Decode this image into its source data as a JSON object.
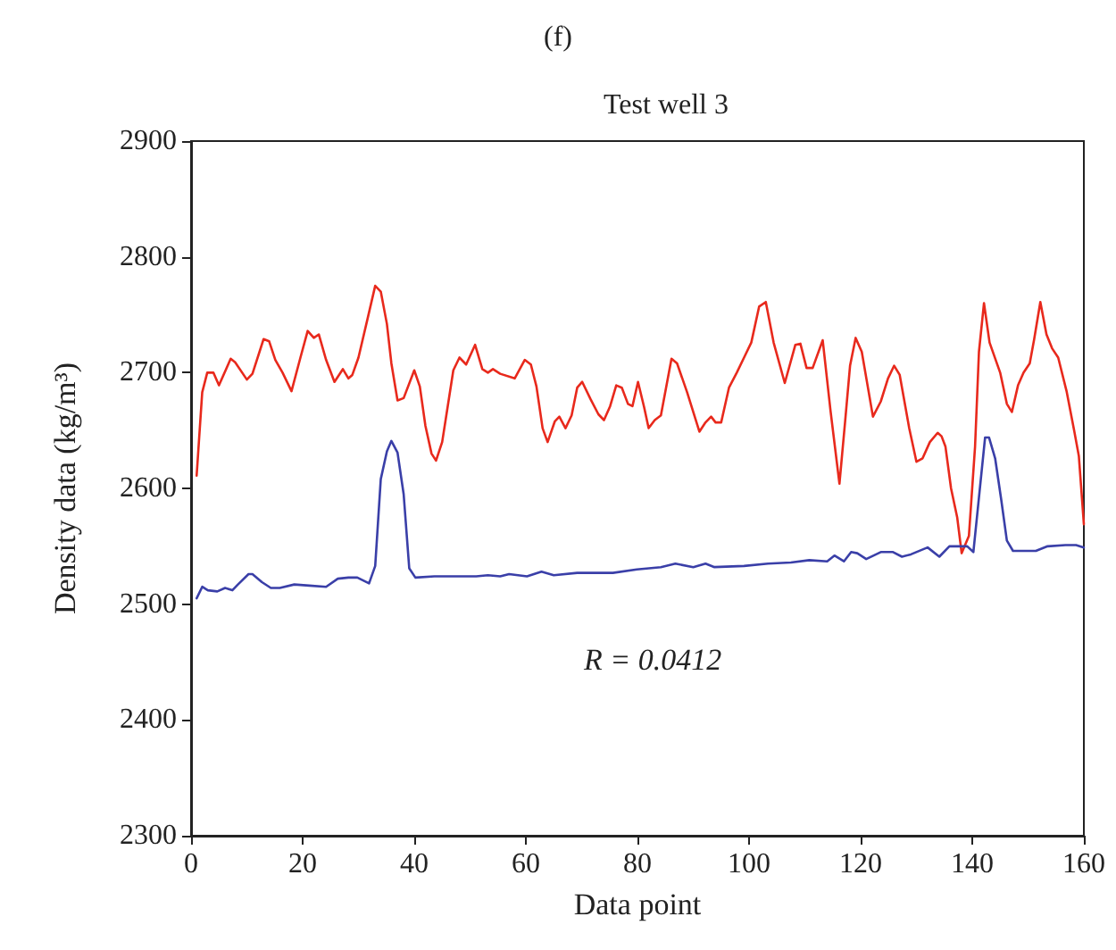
{
  "chart_data": {
    "type": "line",
    "title": "(f)",
    "subtitle": "Test well 3",
    "xlabel": "Data point",
    "ylabel": "Density data (kg/m³)",
    "annotations": [
      "R = 0.0412"
    ],
    "xlim": [
      0,
      160
    ],
    "xticks": [
      0,
      20,
      40,
      60,
      80,
      100,
      120,
      140,
      160
    ],
    "ylim": [
      2300,
      2900
    ],
    "yticks": [
      2300,
      2400,
      2500,
      2600,
      2700,
      2800,
      2900
    ],
    "grid": false,
    "marker": "none",
    "line_style": "solid",
    "series": [
      {
        "color": "#e8291c",
        "x": [
          1,
          2,
          2.9,
          4,
          5,
          7.1,
          7.9,
          10,
          11,
          13,
          14,
          15.1,
          16.4,
          18,
          19.6,
          20.9,
          22,
          22.9,
          24.2,
          25.7,
          27.2,
          28.2,
          28.9,
          30,
          31.7,
          33,
          34,
          35.1,
          35.9,
          37,
          38.1,
          40,
          41,
          42,
          43.1,
          43.9,
          45,
          46,
          47,
          48.1,
          49.3,
          50.9,
          52.2,
          53.2,
          54.1,
          55.4,
          58,
          59.8,
          60.9,
          61.9,
          63,
          63.9,
          65.2,
          66,
          67.1,
          68.2,
          69.2,
          70.1,
          71.6,
          73,
          74,
          75.1,
          76.2,
          77.2,
          78.3,
          79.1,
          80.1,
          81.2,
          82,
          83.1,
          84.2,
          86.1,
          87.1,
          88.9,
          91.1,
          92.2,
          93.2,
          94,
          95,
          96.4,
          97.8,
          99.1,
          100.4,
          101.8,
          103,
          104.4,
          106.4,
          108.3,
          109.2,
          110.3,
          111.4,
          113.2,
          114.6,
          116.2,
          117.2,
          118.1,
          119.1,
          120.2,
          122.2,
          123.6,
          124.9,
          126,
          127,
          128.7,
          130,
          131.1,
          132.4,
          133.8,
          134.5,
          135.2,
          136.2,
          137.3,
          138.1,
          139.4,
          140.5,
          141.2,
          142.1,
          143.1,
          145,
          146.2,
          147.1,
          148.2,
          149.2,
          150.3,
          151.1,
          152.2,
          153.3,
          154.3,
          155.4,
          156.9,
          158.3,
          159.1,
          160
        ],
        "values": [
          2611,
          2683,
          2700,
          2700,
          2689,
          2712,
          2709,
          2694,
          2699,
          2729,
          2727,
          2711,
          2700,
          2684,
          2713,
          2736,
          2730,
          2733,
          2711,
          2692,
          2703,
          2695,
          2698,
          2713,
          2748,
          2775,
          2770,
          2742,
          2708,
          2676,
          2678,
          2702,
          2688,
          2654,
          2630,
          2624,
          2640,
          2671,
          2702,
          2713,
          2707,
          2724,
          2703,
          2700,
          2703,
          2699,
          2695,
          2711,
          2707,
          2688,
          2652,
          2640,
          2658,
          2662,
          2652,
          2663,
          2687,
          2692,
          2677,
          2664,
          2659,
          2671,
          2689,
          2687,
          2673,
          2671,
          2692,
          2670,
          2652,
          2659,
          2663,
          2712,
          2708,
          2683,
          2649,
          2657,
          2662,
          2657,
          2657,
          2687,
          2700,
          2713,
          2726,
          2757,
          2761,
          2726,
          2691,
          2724,
          2725,
          2704,
          2704,
          2728,
          2667,
          2604,
          2657,
          2706,
          2730,
          2718,
          2662,
          2675,
          2695,
          2706,
          2698,
          2652,
          2623,
          2626,
          2640,
          2648,
          2645,
          2636,
          2600,
          2575,
          2544,
          2559,
          2636,
          2718,
          2760,
          2726,
          2700,
          2673,
          2666,
          2689,
          2700,
          2708,
          2729,
          2761,
          2733,
          2721,
          2713,
          2684,
          2649,
          2628,
          2569
        ]
      },
      {
        "color": "#3a3fa8",
        "x": [
          1,
          2,
          3,
          4.7,
          6.1,
          7.4,
          8.4,
          10.3,
          11,
          12.7,
          14.3,
          15.9,
          18.5,
          21.2,
          24.2,
          26.3,
          28.2,
          29.8,
          31.9,
          33,
          34,
          35.1,
          35.9,
          37,
          38.1,
          39.1,
          40.2,
          43.6,
          51.1,
          53.2,
          55.4,
          57,
          60.2,
          62.8,
          65,
          69.2,
          75.6,
          79.9,
          84.2,
          86.8,
          90,
          92.2,
          93.8,
          99.1,
          103.4,
          107.5,
          110.8,
          114,
          115.3,
          117,
          118.3,
          119.4,
          121,
          123.6,
          125.8,
          127.4,
          129,
          132,
          134.1,
          135.9,
          139.1,
          140.2,
          142.3,
          143,
          144.1,
          145.2,
          146.2,
          147.3,
          151.4,
          153.5,
          156.7,
          158.6,
          160
        ],
        "values": [
          2505,
          2515,
          2512,
          2511,
          2514,
          2512,
          2517,
          2526,
          2526,
          2519,
          2514,
          2514,
          2517,
          2516,
          2515,
          2522,
          2523,
          2523,
          2518,
          2533,
          2608,
          2632,
          2641,
          2631,
          2595,
          2531,
          2523,
          2524,
          2524,
          2525,
          2524,
          2526,
          2524,
          2528,
          2525,
          2527,
          2527,
          2530,
          2532,
          2535,
          2532,
          2535,
          2532,
          2533,
          2535,
          2536,
          2538,
          2537,
          2542,
          2537,
          2545,
          2544,
          2539,
          2545,
          2545,
          2541,
          2543,
          2549,
          2541,
          2550,
          2550,
          2545,
          2644,
          2644,
          2626,
          2590,
          2555,
          2546,
          2546,
          2550,
          2551,
          2551,
          2549
        ]
      }
    ]
  }
}
